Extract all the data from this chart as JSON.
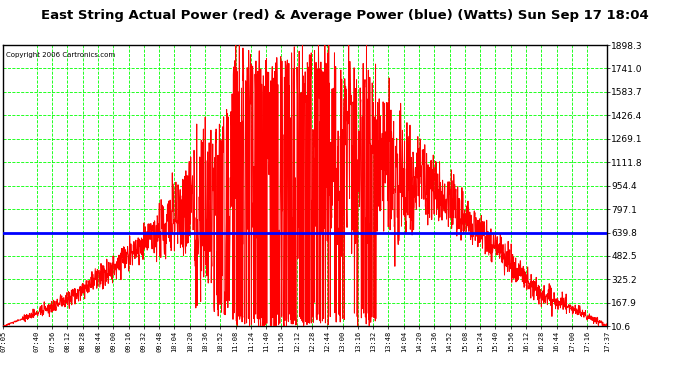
{
  "title": "East String Actual Power (red) & Average Power (blue) (Watts) Sun Sep 17 18:04",
  "copyright": "Copyright 2006 Cartronics.com",
  "yticks": [
    10.6,
    167.9,
    325.2,
    482.5,
    639.8,
    797.1,
    954.4,
    1111.8,
    1269.1,
    1426.4,
    1583.7,
    1741.0,
    1898.3
  ],
  "ylim": [
    10.6,
    1898.3
  ],
  "average_power": 639.8,
  "fig_bg_color": "#ffffff",
  "plot_bg_color": "#ffffff",
  "grid_color": "#00ff00",
  "actual_color": "#ff0000",
  "average_color": "#0000ff",
  "title_color": "#000000",
  "copyright_color": "#000000",
  "tick_label_color": "#000000",
  "xtick_labels": [
    "07:05",
    "07:40",
    "07:56",
    "08:12",
    "08:28",
    "08:44",
    "09:00",
    "09:16",
    "09:32",
    "09:48",
    "10:04",
    "10:20",
    "10:36",
    "10:52",
    "11:08",
    "11:24",
    "11:40",
    "11:56",
    "12:12",
    "12:28",
    "12:44",
    "13:00",
    "13:16",
    "13:32",
    "13:48",
    "14:04",
    "14:20",
    "14:36",
    "14:52",
    "15:08",
    "15:24",
    "15:40",
    "15:56",
    "16:12",
    "16:28",
    "16:44",
    "17:00",
    "17:16",
    "17:37"
  ]
}
